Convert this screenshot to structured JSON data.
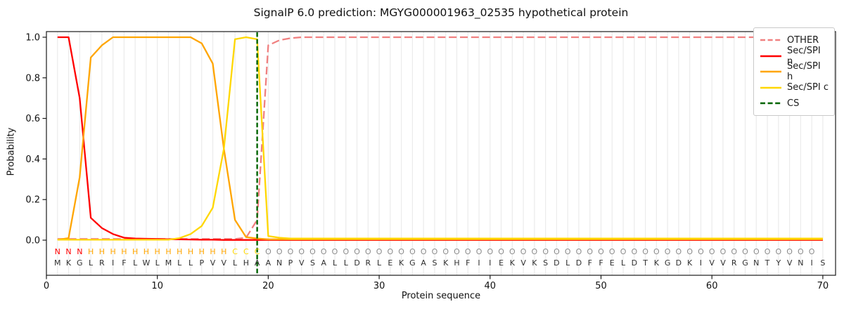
{
  "figure": {
    "title": "SignalP 6.0 prediction: MGYG000001963_02535 hypothetical protein",
    "x_label": "Protein sequence",
    "y_label": "Probability"
  },
  "chart_data": {
    "type": "line",
    "title": "SignalP 6.0 prediction: MGYG000001963_02535 hypothetical protein",
    "xlabel": "Protein sequence",
    "ylabel": "Probability",
    "xlim": [
      0,
      71.2
    ],
    "ylim": [
      -0.17,
      1.03
    ],
    "grid": "vertical gridline at every residue position",
    "legend_position": "upper right",
    "x_ticks": [
      0,
      10,
      20,
      30,
      40,
      50,
      60,
      70
    ],
    "y_ticks": [
      "0.0",
      "0.2",
      "0.4",
      "0.6",
      "0.8",
      "1.0"
    ],
    "positions": [
      1,
      2,
      3,
      4,
      5,
      6,
      7,
      8,
      9,
      10,
      11,
      12,
      13,
      14,
      15,
      16,
      17,
      18,
      19,
      20,
      21,
      22,
      23,
      24,
      25,
      26,
      27,
      28,
      29,
      30,
      31,
      32,
      33,
      34,
      35,
      36,
      37,
      38,
      39,
      40,
      41,
      42,
      43,
      44,
      45,
      46,
      47,
      48,
      49,
      50,
      51,
      52,
      53,
      54,
      55,
      56,
      57,
      58,
      59,
      60,
      61,
      62,
      63,
      64,
      65,
      66,
      67,
      68,
      69,
      70
    ],
    "series": [
      {
        "name": "OTHER",
        "color": "#f08080",
        "style": "dashed",
        "values": [
          0.006,
          0.006,
          0.006,
          0.006,
          0.006,
          0.006,
          0.006,
          0.006,
          0.006,
          0.006,
          0.006,
          0.006,
          0.006,
          0.006,
          0.006,
          0.006,
          0.006,
          0.012,
          0.1,
          0.96,
          0.985,
          0.995,
          1.0,
          1.0,
          1.0,
          1.0,
          1.0,
          1.0,
          1.0,
          1.0,
          1.0,
          1.0,
          1.0,
          1.0,
          1.0,
          1.0,
          1.0,
          1.0,
          1.0,
          1.0,
          1.0,
          1.0,
          1.0,
          1.0,
          1.0,
          1.0,
          1.0,
          1.0,
          1.0,
          1.0,
          1.0,
          1.0,
          1.0,
          1.0,
          1.0,
          1.0,
          1.0,
          1.0,
          1.0,
          1.0,
          1.0,
          1.0,
          1.0,
          1.0,
          1.0,
          1.0,
          1.0,
          1.0,
          1.0,
          1.0
        ]
      },
      {
        "name": "Sec/SPI n",
        "color": "#ff0000",
        "style": "solid",
        "values": [
          1.0,
          1.0,
          0.7,
          0.11,
          0.06,
          0.03,
          0.012,
          0.008,
          0.007,
          0.006,
          0.005,
          0.004,
          0.003,
          0.002,
          0.002,
          0.001,
          0.001,
          0.001,
          0.001,
          0.001,
          0.001,
          0.001,
          0.001,
          0.001,
          0.001,
          0.001,
          0.001,
          0.001,
          0.001,
          0.001,
          0.001,
          0.001,
          0.001,
          0.001,
          0.001,
          0.001,
          0.001,
          0.001,
          0.001,
          0.001,
          0.001,
          0.001,
          0.001,
          0.001,
          0.001,
          0.001,
          0.001,
          0.001,
          0.001,
          0.001,
          0.001,
          0.001,
          0.001,
          0.001,
          0.001,
          0.001,
          0.001,
          0.001,
          0.001,
          0.001,
          0.001,
          0.001,
          0.001,
          0.001,
          0.001,
          0.001,
          0.001,
          0.001,
          0.001,
          0.001
        ]
      },
      {
        "name": "Sec/SPI h",
        "color": "#ffa500",
        "style": "solid",
        "values": [
          0.002,
          0.01,
          0.31,
          0.9,
          0.96,
          1.0,
          1.0,
          1.0,
          1.0,
          1.0,
          1.0,
          1.0,
          1.0,
          0.97,
          0.87,
          0.45,
          0.1,
          0.015,
          0.008,
          0.004,
          0.004,
          0.004,
          0.004,
          0.004,
          0.004,
          0.004,
          0.004,
          0.004,
          0.004,
          0.004,
          0.004,
          0.004,
          0.004,
          0.004,
          0.004,
          0.004,
          0.004,
          0.004,
          0.004,
          0.004,
          0.004,
          0.004,
          0.004,
          0.004,
          0.004,
          0.004,
          0.004,
          0.004,
          0.004,
          0.004,
          0.004,
          0.004,
          0.004,
          0.004,
          0.004,
          0.004,
          0.004,
          0.004,
          0.004,
          0.004,
          0.004,
          0.004,
          0.004,
          0.004,
          0.004,
          0.004,
          0.004,
          0.004,
          0.004,
          0.004
        ]
      },
      {
        "name": "Sec/SPI c",
        "color": "#ffd700",
        "style": "solid",
        "values": [
          0.002,
          0.002,
          0.002,
          0.002,
          0.002,
          0.002,
          0.002,
          0.002,
          0.002,
          0.002,
          0.002,
          0.01,
          0.03,
          0.07,
          0.16,
          0.45,
          0.99,
          1.0,
          0.99,
          0.02,
          0.012,
          0.008,
          0.008,
          0.008,
          0.008,
          0.008,
          0.008,
          0.008,
          0.008,
          0.008,
          0.008,
          0.008,
          0.008,
          0.008,
          0.008,
          0.008,
          0.008,
          0.008,
          0.008,
          0.008,
          0.008,
          0.008,
          0.008,
          0.008,
          0.008,
          0.008,
          0.008,
          0.008,
          0.008,
          0.008,
          0.008,
          0.008,
          0.008,
          0.008,
          0.008,
          0.008,
          0.008,
          0.008,
          0.008,
          0.008,
          0.008,
          0.008,
          0.008,
          0.008,
          0.008,
          0.008,
          0.008,
          0.008,
          0.008,
          0.008
        ]
      }
    ],
    "cs_marker": {
      "name": "CS",
      "position": 19,
      "color": "#006400",
      "style": "dashed"
    },
    "legend_entries": [
      "OTHER",
      "Sec/SPI n",
      "Sec/SPI h",
      "Sec/SPI c",
      "CS"
    ],
    "sequence": "MKGLRIFLWLMLLPVVLHAANPVSALLDRLEKGASKHFIIEKVKSDLDFFELDTKGDKIVVRGNTYVNIS",
    "region_labels": "NNNHHHHHHHHHHHHHCCCOOOOOOOOOOOOOOOOOOOOOOOOOOOOOOOOOOOOOOOOOOOOOOOOOO",
    "region_colors": {
      "N": "#ff0000",
      "H": "#ffa500",
      "C": "#ffd700",
      "O": "#8c8c8c"
    },
    "sequence_color": "#303030",
    "gridline_color": "#ebebeb",
    "axis_color": "#1a1a1a"
  }
}
